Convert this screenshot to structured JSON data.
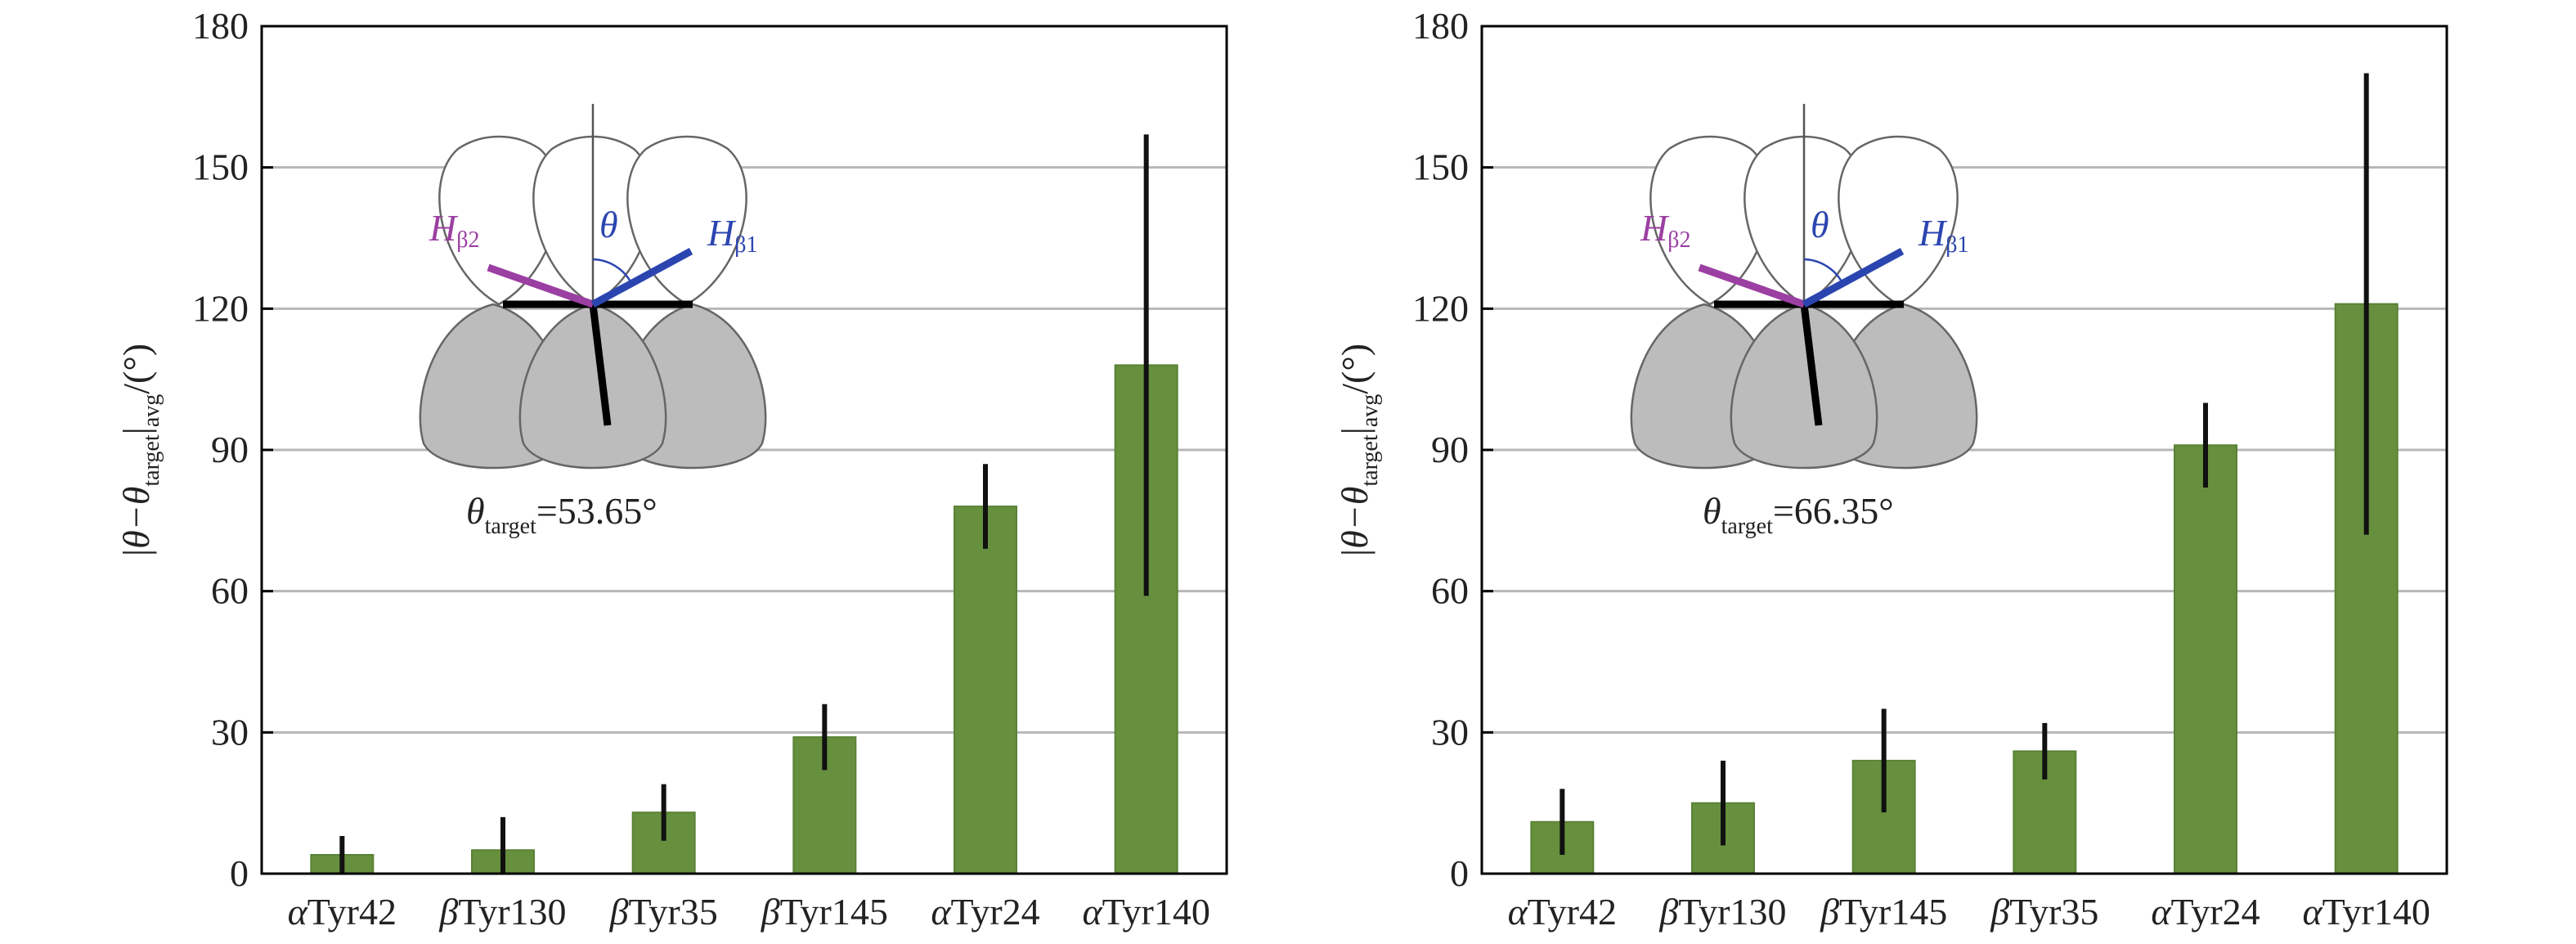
{
  "colors": {
    "bar": "#66903e",
    "bar_edge": "#5a8236",
    "error": "#111111",
    "grid": "#b7b7b7",
    "axis": "#000000",
    "h_beta2": "#9b3fa2",
    "h_beta1": "#2b45b0",
    "lobe_fill": "#bcbcbc",
    "lobe_edge": "#666666"
  },
  "chart_data": [
    {
      "type": "bar",
      "categories": [
        "αTyr42",
        "βTyr130",
        "βTyr35",
        "βTyr145",
        "αTyr24",
        "αTyr140"
      ],
      "category_parts": [
        {
          "greek": "α",
          "rest": "Tyr42"
        },
        {
          "greek": "β",
          "rest": "Tyr130"
        },
        {
          "greek": "β",
          "rest": "Tyr35"
        },
        {
          "greek": "β",
          "rest": "Tyr145"
        },
        {
          "greek": "α",
          "rest": "Tyr24"
        },
        {
          "greek": "α",
          "rest": "Tyr140"
        }
      ],
      "values": [
        4,
        5,
        13,
        29,
        78,
        108
      ],
      "errors": [
        [
          0,
          8
        ],
        [
          0,
          12
        ],
        [
          7,
          19
        ],
        [
          22,
          36
        ],
        [
          69,
          87
        ],
        [
          59,
          157
        ]
      ],
      "ylim": [
        0,
        180
      ],
      "yticks": [
        "0",
        "30",
        "60",
        "90",
        "120",
        "150",
        "180"
      ],
      "ylabel": {
        "pre": "|θ−θ",
        "sub1": "target",
        "mid": "|",
        "sub2": "avg",
        "post": "/(°)"
      },
      "grid": true,
      "inset": {
        "h_beta2": {
          "main": "H",
          "sub": "β2"
        },
        "h_beta1": {
          "main": "H",
          "sub": "β1"
        },
        "theta": "θ",
        "target": {
          "main": "θ",
          "sub": "target",
          "value": "=53.65°"
        }
      }
    },
    {
      "type": "bar",
      "categories": [
        "αTyr42",
        "βTyr130",
        "βTyr145",
        "βTyr35",
        "αTyr24",
        "αTyr140"
      ],
      "category_parts": [
        {
          "greek": "α",
          "rest": "Tyr42"
        },
        {
          "greek": "β",
          "rest": "Tyr130"
        },
        {
          "greek": "β",
          "rest": "Tyr145"
        },
        {
          "greek": "β",
          "rest": "Tyr35"
        },
        {
          "greek": "α",
          "rest": "Tyr24"
        },
        {
          "greek": "α",
          "rest": "Tyr140"
        }
      ],
      "values": [
        11,
        15,
        24,
        26,
        91,
        121
      ],
      "errors": [
        [
          4,
          18
        ],
        [
          6,
          24
        ],
        [
          13,
          35
        ],
        [
          20,
          32
        ],
        [
          82,
          100
        ],
        [
          72,
          170
        ]
      ],
      "ylim": [
        0,
        180
      ],
      "yticks": [
        "0",
        "30",
        "60",
        "90",
        "120",
        "150",
        "180"
      ],
      "ylabel": {
        "pre": "|θ−θ",
        "sub1": "target",
        "mid": "|",
        "sub2": "avg",
        "post": "/(°)"
      },
      "grid": true,
      "inset": {
        "h_beta2": {
          "main": "H",
          "sub": "β2"
        },
        "h_beta1": {
          "main": "H",
          "sub": "β1"
        },
        "theta": "θ",
        "target": {
          "main": "θ",
          "sub": "target",
          "value": "=66.35°"
        }
      }
    }
  ]
}
